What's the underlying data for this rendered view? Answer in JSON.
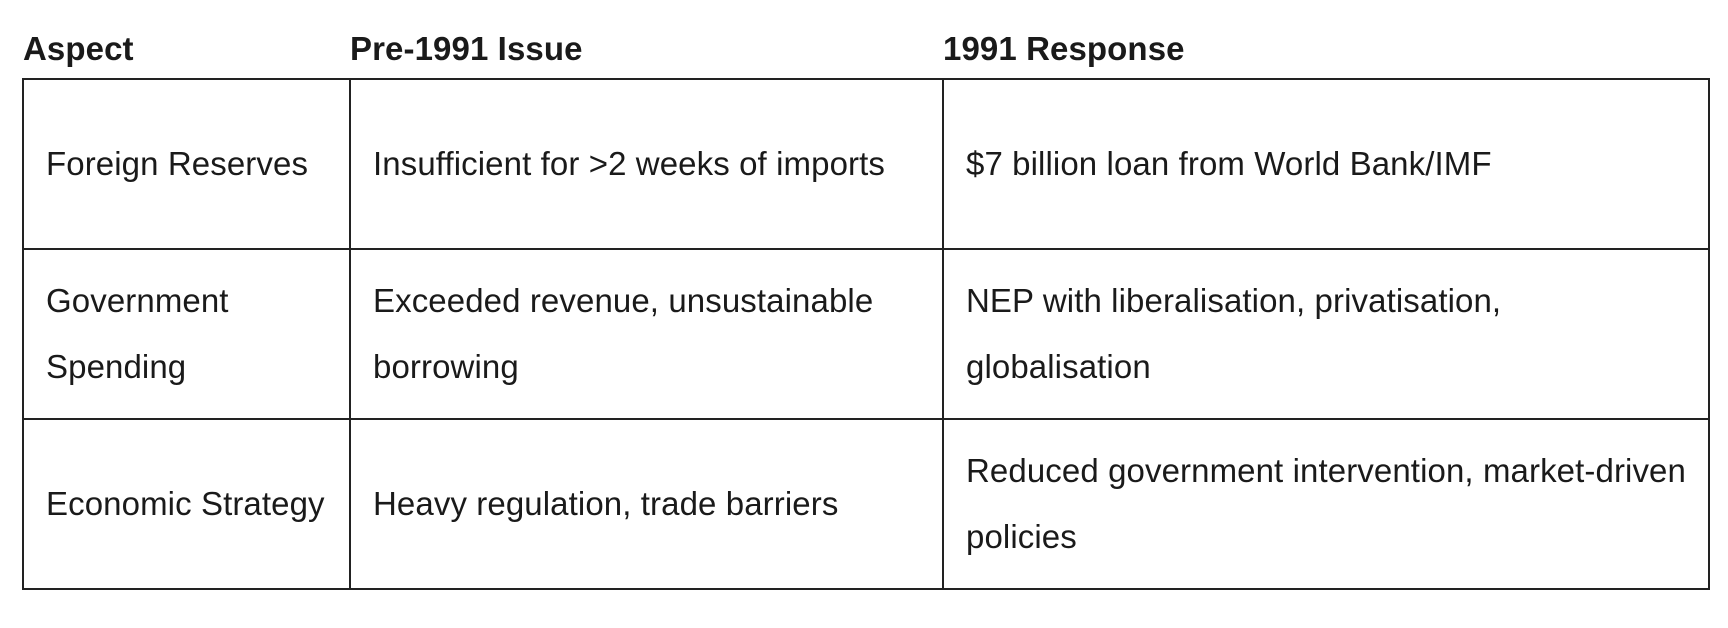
{
  "table": {
    "headers": [
      "Aspect",
      "Pre-1991 Issue",
      "1991 Response"
    ],
    "rows": [
      {
        "aspect": "Foreign Reserves",
        "issue": "Insufficient for >2 weeks of imports",
        "response": "$7 billion loan from World Bank/IMF"
      },
      {
        "aspect": "Government Spending",
        "issue": "Exceeded revenue, unsustainable borrowing",
        "response": "NEP with liberalisation, privatisation, globalisation"
      },
      {
        "aspect": "Economic Strategy",
        "issue": "Heavy regulation, trade barriers",
        "response": "Reduced government intervention, market-driven policies"
      }
    ]
  }
}
